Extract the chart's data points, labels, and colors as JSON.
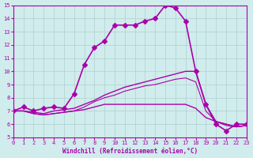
{
  "title": "",
  "xlabel": "Windchill (Refroidissement éolien,°C)",
  "ylabel": "",
  "background_color": "#d0ecec",
  "grid_color": "#b0d0d0",
  "line_color": "#aa00aa",
  "xlim": [
    0,
    23
  ],
  "ylim": [
    5,
    15
  ],
  "xticks": [
    0,
    1,
    2,
    3,
    4,
    5,
    6,
    7,
    8,
    9,
    10,
    11,
    12,
    13,
    14,
    15,
    16,
    17,
    18,
    19,
    20,
    21,
    22,
    23
  ],
  "yticks": [
    5,
    6,
    7,
    8,
    9,
    10,
    11,
    12,
    13,
    14,
    15
  ],
  "series": [
    {
      "x": [
        0,
        1,
        2,
        3,
        4,
        5,
        6,
        7,
        8,
        9,
        10,
        11,
        12,
        13,
        14,
        15,
        16,
        17,
        18,
        19,
        20,
        21,
        22,
        23
      ],
      "y": [
        7.0,
        7.3,
        7.0,
        7.2,
        7.3,
        7.2,
        8.3,
        10.5,
        11.8,
        12.3,
        13.5,
        13.5,
        13.5,
        13.8,
        14.0,
        15.0,
        14.8,
        13.8,
        10.0,
        7.5,
        6.0,
        5.5,
        6.0,
        6.0
      ],
      "marker": "D",
      "markersize": 3,
      "linewidth": 1.2
    },
    {
      "x": [
        0,
        1,
        2,
        3,
        4,
        5,
        6,
        7,
        8,
        9,
        10,
        11,
        12,
        13,
        14,
        15,
        16,
        17,
        18,
        19,
        20,
        21,
        22,
        23
      ],
      "y": [
        7.0,
        7.0,
        6.9,
        6.8,
        7.0,
        7.1,
        7.2,
        7.5,
        7.8,
        8.2,
        8.5,
        8.8,
        9.0,
        9.2,
        9.4,
        9.6,
        9.8,
        10.0,
        10.0,
        7.5,
        6.2,
        6.0,
        5.8,
        5.9
      ],
      "marker": null,
      "markersize": 0,
      "linewidth": 1.0
    },
    {
      "x": [
        0,
        1,
        2,
        3,
        4,
        5,
        6,
        7,
        8,
        9,
        10,
        11,
        12,
        13,
        14,
        15,
        16,
        17,
        18,
        19,
        20,
        21,
        22,
        23
      ],
      "y": [
        7.0,
        7.0,
        6.8,
        6.7,
        6.8,
        6.9,
        7.0,
        7.1,
        7.3,
        7.5,
        7.5,
        7.5,
        7.5,
        7.5,
        7.5,
        7.5,
        7.5,
        7.5,
        7.2,
        6.5,
        6.2,
        6.0,
        5.8,
        5.9
      ],
      "marker": null,
      "markersize": 0,
      "linewidth": 1.0
    },
    {
      "x": [
        0,
        1,
        2,
        3,
        4,
        5,
        6,
        7,
        8,
        9,
        10,
        11,
        12,
        13,
        14,
        15,
        16,
        17,
        18,
        19,
        20,
        21,
        22,
        23
      ],
      "y": [
        7.0,
        7.0,
        6.8,
        6.7,
        6.8,
        6.9,
        7.0,
        7.3,
        7.7,
        8.0,
        8.2,
        8.5,
        8.7,
        8.9,
        9.0,
        9.2,
        9.4,
        9.5,
        9.2,
        7.0,
        6.2,
        5.9,
        5.8,
        5.9
      ],
      "marker": null,
      "markersize": 0,
      "linewidth": 0.8
    }
  ]
}
